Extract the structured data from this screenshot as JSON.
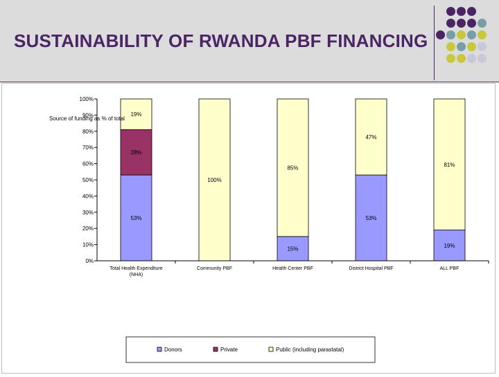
{
  "slide": {
    "title": "SUSTAINABILITY OF RWANDA PBF FINANCING"
  },
  "colors": {
    "header_bg": "#dcdcdc",
    "title": "#4b2465",
    "dot_purple": "#4b2465",
    "dot_teal": "#7a9ea8",
    "dot_olive": "#c8c83c",
    "dot_gray": "#c8c8d8",
    "donors": "#9999ff",
    "private": "#993366",
    "public": "#ffffcc"
  },
  "chart_data": {
    "type": "bar",
    "stacked": true,
    "ylabel": "Source of funding as % of total",
    "ylim": [
      0,
      100
    ],
    "yticks": [
      "0%",
      "10%",
      "20%",
      "30%",
      "40%",
      "50%",
      "60%",
      "70%",
      "80%",
      "90%",
      "100%"
    ],
    "categories": [
      "Total Health Expenditure (NHA)",
      "Community PBF",
      "Health Center PBF",
      "District Hospital PBF",
      "ALL PBF"
    ],
    "series": [
      {
        "name": "Donors",
        "values": [
          53,
          0,
          15,
          53,
          19
        ],
        "labels": [
          "53%",
          "",
          "15%",
          "53%",
          "19%"
        ]
      },
      {
        "name": "Private",
        "values": [
          28,
          0,
          0,
          0,
          0
        ],
        "labels": [
          "28%",
          "",
          "",
          "",
          ""
        ]
      },
      {
        "name": "Public (including parastatal)",
        "values": [
          19,
          100,
          85,
          47,
          81
        ],
        "labels": [
          "19%",
          "100%",
          "85%",
          "47%",
          "81%"
        ]
      }
    ],
    "legend_position": "bottom"
  }
}
